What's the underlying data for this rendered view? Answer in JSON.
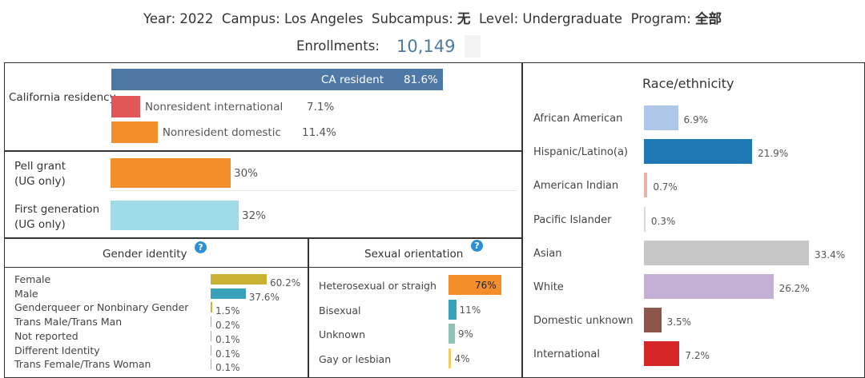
{
  "header": {
    "year_label": "Year:",
    "year": "2022",
    "campus_label": "Campus:",
    "campus": "Los Angeles",
    "subcampus_label": "Subcampus:",
    "subcampus": "无",
    "level_label": "Level:",
    "level": "Undergraduate",
    "program_label": "Program:",
    "program": "全部",
    "enroll_label": "Enrollments:",
    "enroll_value": "10,149"
  },
  "colors": {
    "ca_resident": "#4e79a7",
    "nonres_intl": "#e15759",
    "nonres_dom": "#f28e2b",
    "pell": "#f28e2b",
    "first_gen": "#a0dbe8",
    "female": "#c9b233",
    "male": "#3aa1ba",
    "hetero": "#f28e2b",
    "bisexual": "#3aa1ba",
    "unknown": "#8fc3b7",
    "gay": "#f1ce63"
  },
  "chart_data": [
    {
      "type": "bar",
      "title": "California residency",
      "categories": [
        "CA resident",
        "Nonresident international",
        "Nonresident domestic"
      ],
      "values": [
        81.6,
        7.1,
        11.4
      ],
      "value_labels": [
        "81.6%",
        "7.1%",
        "11.4%"
      ]
    },
    {
      "type": "bar",
      "categories": [
        "Pell grant (UG only)",
        "First generation (UG only)"
      ],
      "label_lines": [
        [
          "Pell grant",
          "(UG only)"
        ],
        [
          "First generation",
          "(UG only)"
        ]
      ],
      "values": [
        30,
        32
      ],
      "value_labels": [
        "30%",
        "32%"
      ]
    },
    {
      "type": "bar",
      "title": "Gender identity",
      "categories": [
        "Female",
        "Male",
        "Genderqueer or Nonbinary Gender",
        "Trans Male/Trans Man",
        "Not reported",
        "Different Identity",
        "Trans Female/Trans Woman"
      ],
      "values": [
        60.2,
        37.6,
        1.5,
        0.2,
        0.1,
        0.1,
        0.1
      ],
      "value_labels": [
        "60.2%",
        "37.6%",
        "1.5%",
        "0.2%",
        "0.1%",
        "0.1%",
        "0.1%"
      ]
    },
    {
      "type": "bar",
      "title": "Sexual orientation",
      "categories": [
        "Heterosexual or straigh",
        "Bisexual",
        "Unknown",
        "Gay or lesbian"
      ],
      "values": [
        76,
        11,
        9,
        4
      ],
      "value_labels": [
        "76%",
        "11%",
        "9%",
        "4%"
      ]
    },
    {
      "type": "bar",
      "title": "Race/ethnicity",
      "categories": [
        "African American",
        "Hispanic/Latino(a)",
        "American Indian",
        "Pacific Islander",
        "Asian",
        "White",
        "Domestic unknown",
        "International"
      ],
      "values": [
        6.9,
        21.9,
        0.7,
        0.3,
        33.4,
        26.2,
        3.5,
        7.2
      ],
      "value_labels": [
        "6.9%",
        "21.9%",
        "0.7%",
        "0.3%",
        "33.4%",
        "26.2%",
        "3.5%",
        "7.2%"
      ],
      "colors": [
        "#aec7e8",
        "#1f77b4",
        "#e8b4a6",
        "#d9d9d9",
        "#c7c7c7",
        "#c5b0d5",
        "#8c564b",
        "#d62728"
      ]
    }
  ]
}
